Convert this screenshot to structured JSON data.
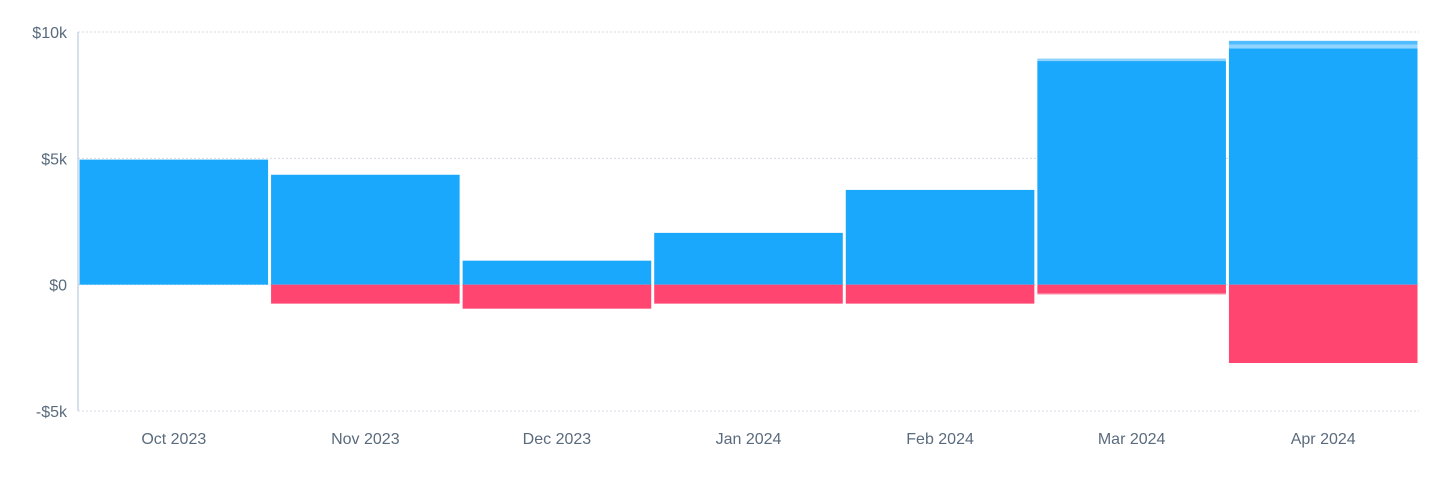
{
  "chart_data": {
    "type": "bar",
    "stacked": true,
    "categories": [
      "Oct 2023",
      "Nov 2023",
      "Dec 2023",
      "Jan 2024",
      "Feb 2024",
      "Mar 2024",
      "Apr 2024"
    ],
    "series": [
      {
        "color": "#1aa8fc",
        "values": [
          4950,
          4350,
          950,
          2050,
          3750,
          8850,
          9350
        ]
      },
      {
        "color": "#8fd3ff",
        "values": [
          0,
          0,
          0,
          0,
          0,
          100,
          150
        ]
      },
      {
        "color": "#4fbdfd",
        "values": [
          0,
          0,
          0,
          0,
          0,
          0,
          150
        ]
      },
      {
        "color": "#ff4570",
        "values": [
          0,
          -750,
          -950,
          -750,
          -750,
          -350,
          -3100
        ]
      },
      {
        "color": "#fbb6c6",
        "values": [
          0,
          0,
          0,
          0,
          0,
          -50,
          0
        ]
      }
    ],
    "ylim": [
      -5000,
      10000
    ],
    "yticks": [
      {
        "value": 10000,
        "label": "$10k"
      },
      {
        "value": 5000,
        "label": "$5k"
      },
      {
        "value": 0,
        "label": "$0"
      },
      {
        "value": -5000,
        "label": "-$5k"
      }
    ],
    "grid": true,
    "legend": "none",
    "xlabel": "",
    "ylabel": ""
  }
}
